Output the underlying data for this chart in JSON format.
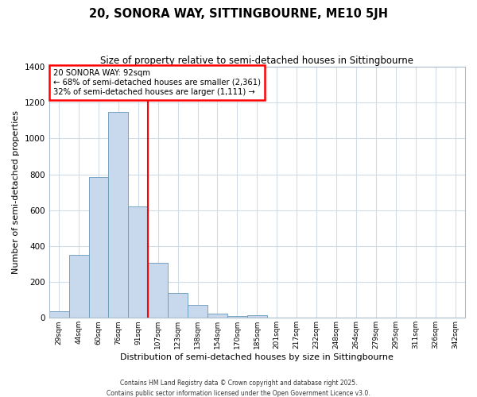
{
  "title": "20, SONORA WAY, SITTINGBOURNE, ME10 5JH",
  "subtitle": "Size of property relative to semi-detached houses in Sittingbourne",
  "xlabel": "Distribution of semi-detached houses by size in Sittingbourne",
  "ylabel": "Number of semi-detached properties",
  "bar_labels": [
    "29sqm",
    "44sqm",
    "60sqm",
    "76sqm",
    "91sqm",
    "107sqm",
    "123sqm",
    "138sqm",
    "154sqm",
    "170sqm",
    "185sqm",
    "201sqm",
    "217sqm",
    "232sqm",
    "248sqm",
    "264sqm",
    "279sqm",
    "295sqm",
    "311sqm",
    "326sqm",
    "342sqm"
  ],
  "bar_values": [
    35,
    350,
    785,
    1150,
    620,
    305,
    140,
    70,
    25,
    10,
    15,
    0,
    0,
    0,
    0,
    0,
    0,
    0,
    0,
    0,
    0
  ],
  "bar_color": "#c8d8ed",
  "bar_edge_color": "#6699bb",
  "annotation_title": "20 SONORA WAY: 92sqm",
  "annotation_line1": "← 68% of semi-detached houses are smaller (2,361)",
  "annotation_line2": "32% of semi-detached houses are larger (1,111) →",
  "vline_bar_index": 4,
  "ylim": [
    0,
    1400
  ],
  "yticks": [
    0,
    200,
    400,
    600,
    800,
    1000,
    1200,
    1400
  ],
  "bg_color": "#ffffff",
  "grid_color": "#d0dce8",
  "footer1": "Contains HM Land Registry data © Crown copyright and database right 2025.",
  "footer2": "Contains public sector information licensed under the Open Government Licence v3.0."
}
